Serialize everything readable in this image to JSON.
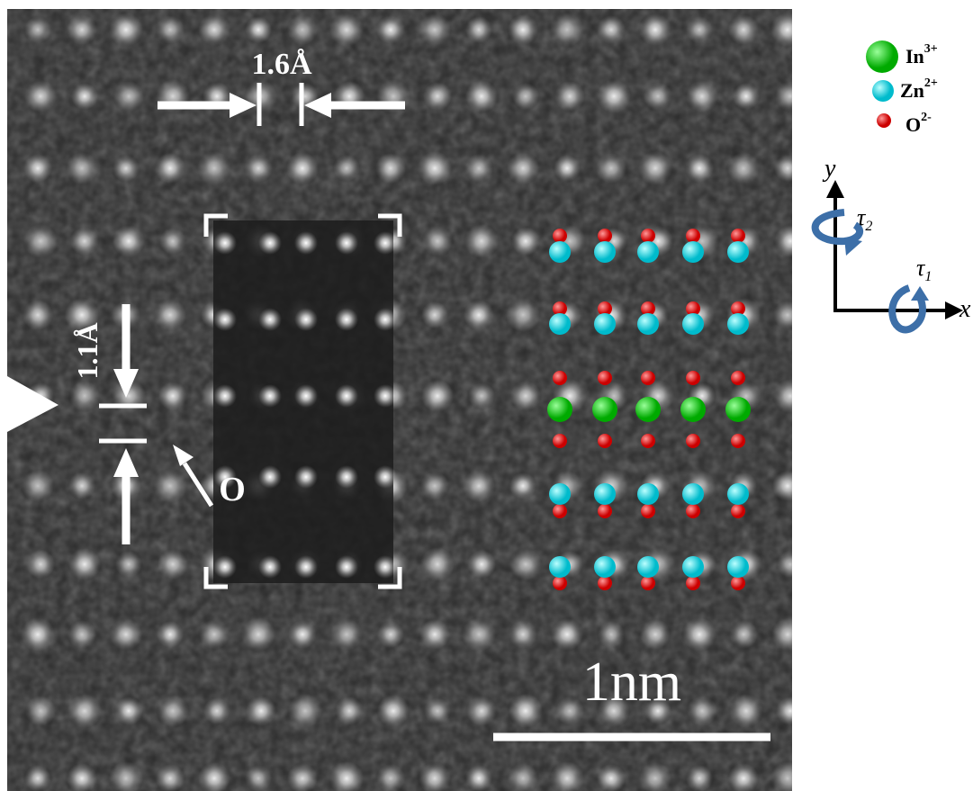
{
  "annotations": {
    "horizontal_spacing": "1.6Å",
    "vertical_spacing": "1.1Å",
    "oxygen": "O",
    "scale_bar": "1nm"
  },
  "legend": [
    {
      "ion": "In",
      "charge": "3+"
    },
    {
      "ion": "Zn",
      "charge": "2+"
    },
    {
      "ion": "O",
      "charge": "2-"
    }
  ],
  "axes": {
    "y": "y",
    "x": "x",
    "tau_2": {
      "symbol": "τ",
      "subscript": "2"
    },
    "tau_1": {
      "symbol": "τ",
      "subscript": "1"
    }
  }
}
